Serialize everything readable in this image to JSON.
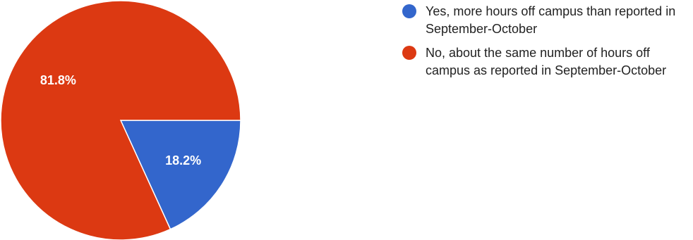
{
  "chart_data": {
    "type": "pie",
    "title": "",
    "slices": [
      {
        "label": "Yes, more hours off campus than reported in September-October",
        "value": 18.2,
        "display": "18.2%",
        "color": "#3366cc"
      },
      {
        "label": "No, about the same number of hours off campus as reported in September-October",
        "value": 81.8,
        "display": "81.8%",
        "color": "#dc3912"
      }
    ],
    "legend_position": "right"
  }
}
